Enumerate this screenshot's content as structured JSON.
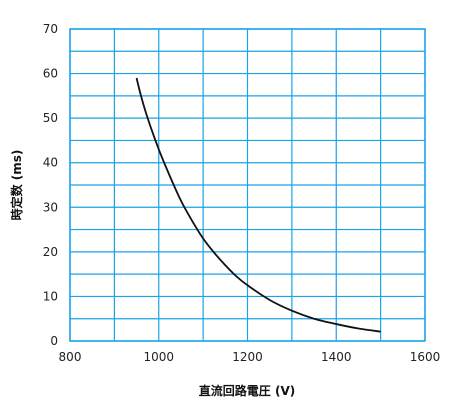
{
  "chart_data": {
    "type": "line",
    "title": "",
    "xlabel": "直流回路電圧 (V)",
    "ylabel": "時定数 (ms)",
    "xlim": [
      800,
      1600
    ],
    "ylim": [
      0,
      70
    ],
    "x_ticks": [
      800,
      1000,
      1200,
      1400,
      1600
    ],
    "y_ticks": [
      0,
      10,
      20,
      30,
      40,
      50,
      60,
      70
    ],
    "x_grid_step": 100,
    "y_grid_step": 5,
    "grid": true,
    "grid_color": "#1aa3e8",
    "line_color": "#111111",
    "legend": "none",
    "series": [
      {
        "x": [
          950,
          960,
          975,
          1000,
          1025,
          1050,
          1075,
          1100,
          1125,
          1150,
          1175,
          1200,
          1250,
          1300,
          1350,
          1400,
          1450,
          1500
        ],
        "y": [
          59,
          55,
          50,
          43,
          37,
          31.5,
          27,
          23,
          19.8,
          17,
          14.5,
          12.5,
          9.2,
          6.8,
          5.0,
          3.8,
          2.8,
          2.1
        ]
      }
    ]
  }
}
